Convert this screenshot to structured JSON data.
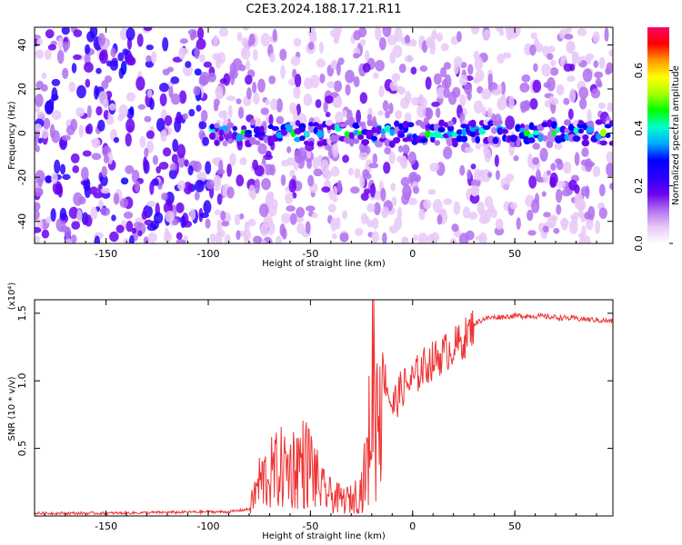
{
  "title": "C2E3.2024.188.17.21.R11",
  "chart_data": [
    {
      "type": "heatmap",
      "xlabel": "Height of straight line (km)",
      "ylabel": "Frequency (Hz)",
      "xlim": [
        -185,
        98
      ],
      "ylim": [
        -50,
        48
      ],
      "xticks": [
        -150,
        -100,
        -50,
        0,
        50
      ],
      "yticks": [
        -40,
        -20,
        0,
        20,
        40
      ],
      "colorbar": {
        "label": "Normalized spectral amplitude",
        "range": [
          0.0,
          0.75
        ],
        "ticks": [
          "0.0",
          "0.2",
          "0.4",
          "0.6"
        ],
        "colors": [
          "#ffffff",
          "#e8c8f8",
          "#b070f0",
          "#6a00f0",
          "#2a00ff",
          "#0000ff",
          "#00aaff",
          "#00ffcc",
          "#00ff00",
          "#aaff00",
          "#ffff00",
          "#ff9900",
          "#ff0000",
          "#ff0066"
        ]
      },
      "description_regions": [
        {
          "x_range": [
            -185,
            -100
          ],
          "pattern": "broadband noise",
          "level": 0.12
        },
        {
          "x_range": [
            -100,
            98
          ],
          "pattern": "noise with narrow line at 0 Hz",
          "line_level": 0.45
        }
      ]
    },
    {
      "type": "line",
      "xlabel": "Height of straight line (km)",
      "ylabel": "SNR (10 * v/v)",
      "multiplier_label": "(x10⁴)",
      "xlim": [
        -185,
        98
      ],
      "ylim": [
        0,
        1.6
      ],
      "xticks": [
        -150,
        -100,
        -50,
        0,
        50
      ],
      "yticks": [
        "0.5",
        "1.0",
        "1.5"
      ],
      "color": "#ee3333",
      "series": [
        {
          "x": [
            -185,
            -150,
            -100,
            -90,
            -80,
            -75,
            -70,
            -65,
            -60,
            -55,
            -50,
            -45,
            -40,
            -35,
            -30,
            -25,
            -22,
            -20,
            -19,
            -18,
            -17,
            -15,
            -13,
            -10,
            -5,
            0,
            5,
            10,
            15,
            20,
            25,
            30,
            35,
            40,
            50,
            60,
            70,
            80,
            90,
            98
          ],
          "y": [
            0.02,
            0.02,
            0.03,
            0.03,
            0.05,
            0.25,
            0.3,
            0.35,
            0.35,
            0.4,
            0.38,
            0.2,
            0.15,
            0.12,
            0.12,
            0.2,
            0.4,
            0.9,
            1.35,
            0.7,
            0.9,
            1.1,
            1.0,
            0.8,
            0.95,
            1.0,
            1.1,
            1.15,
            1.2,
            1.25,
            1.3,
            1.42,
            1.46,
            1.47,
            1.48,
            1.48,
            1.47,
            1.46,
            1.45,
            1.44
          ]
        }
      ]
    }
  ]
}
